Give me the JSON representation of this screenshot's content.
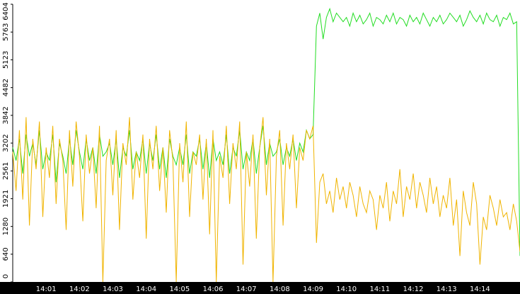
{
  "chart_data": {
    "type": "line",
    "categories": [
      null,
      null,
      null,
      null,
      null,
      null,
      null,
      null,
      null,
      null,
      "14:01",
      null,
      null,
      null,
      null,
      null,
      null,
      null,
      null,
      null,
      "14:02",
      null,
      null,
      null,
      null,
      null,
      null,
      null,
      null,
      null,
      "14:03",
      null,
      null,
      null,
      null,
      null,
      null,
      null,
      null,
      null,
      "14:04",
      null,
      null,
      null,
      null,
      null,
      null,
      null,
      null,
      null,
      "14:05",
      null,
      null,
      null,
      null,
      null,
      null,
      null,
      null,
      null,
      "14:06",
      null,
      null,
      null,
      null,
      null,
      null,
      null,
      null,
      null,
      "14:07",
      null,
      null,
      null,
      null,
      null,
      null,
      null,
      null,
      null,
      "14:08",
      null,
      null,
      null,
      null,
      null,
      null,
      null,
      null,
      null,
      "14:09",
      null,
      null,
      null,
      null,
      null,
      null,
      null,
      null,
      null,
      "14:10",
      null,
      null,
      null,
      null,
      null,
      null,
      null,
      null,
      null,
      "14:11",
      null,
      null,
      null,
      null,
      null,
      null,
      null,
      null,
      null,
      "14:12",
      null,
      null,
      null,
      null,
      null,
      null,
      null,
      null,
      null,
      "14:13",
      null,
      null,
      null,
      null,
      null,
      null,
      null,
      null,
      null,
      "14:14",
      null,
      null,
      null,
      null,
      null,
      null,
      null,
      null,
      null,
      null,
      null,
      null
    ],
    "series": [
      {
        "color": "#22dd22",
        "values": [
          3100,
          2800,
          3300,
          2500,
          3400,
          2900,
          3200,
          2700,
          3500,
          2600,
          3000,
          2800,
          3400,
          2300,
          3200,
          2900,
          2500,
          3300,
          2700,
          3500,
          3000,
          2600,
          3300,
          2800,
          3100,
          2500,
          3400,
          2900,
          3000,
          3200,
          2700,
          3300,
          2400,
          3100,
          2900,
          3500,
          2600,
          3000,
          2800,
          3300,
          2500,
          3200,
          2800,
          3400,
          2600,
          3100,
          2400,
          3300,
          2900,
          2700,
          3100,
          2700,
          3400,
          2500,
          3000,
          2900,
          3300,
          2600,
          3200,
          2400,
          3300,
          2800,
          3000,
          2700,
          3400,
          2500,
          3100,
          2900,
          3500,
          2600,
          3000,
          2800,
          3300,
          2500,
          3100,
          3600,
          2700,
          3200,
          2900,
          3000,
          3300,
          2700,
          3100,
          2900,
          3300,
          2800,
          3200,
          3000,
          3500,
          3300,
          3400,
          5900,
          6200,
          5600,
          6100,
          6300,
          6000,
          6200,
          6100,
          6000,
          6100,
          5900,
          6200,
          6000,
          6150,
          5950,
          6050,
          6200,
          5900,
          6100,
          6050,
          5950,
          6150,
          6000,
          6200,
          5950,
          6100,
          6050,
          5900,
          6150,
          6000,
          6100,
          5950,
          6200,
          6050,
          5900,
          6100,
          6000,
          6150,
          5950,
          6050,
          6200,
          6100,
          6000,
          6150,
          5900,
          6050,
          6250,
          6100,
          6000,
          6150,
          5950,
          6200,
          6050,
          6000,
          6150,
          5900,
          6100,
          6050,
          6200,
          5950,
          6000,
          600
        ]
      },
      {
        "color": "#f0b400",
        "values": [
          3000,
          2100,
          3500,
          1900,
          3800,
          1300,
          3300,
          2600,
          3700,
          1500,
          3100,
          2400,
          3600,
          1800,
          3300,
          2800,
          1200,
          3500,
          2200,
          3700,
          2900,
          1400,
          3400,
          2500,
          3100,
          1700,
          3600,
          0,
          2800,
          3300,
          2000,
          3500,
          1200,
          3200,
          2700,
          3800,
          1900,
          3000,
          2400,
          3400,
          1000,
          3300,
          2600,
          3600,
          2100,
          3100,
          1600,
          3500,
          2800,
          0,
          3200,
          2300,
          3700,
          1500,
          3000,
          2700,
          3400,
          1900,
          3300,
          1100,
          3500,
          0,
          2900,
          2400,
          3600,
          1800,
          3200,
          2600,
          3700,
          400,
          3000,
          2200,
          3400,
          1000,
          3100,
          3800,
          2000,
          3300,
          0,
          2900,
          3500,
          1300,
          3200,
          2600,
          3400,
          1700,
          3100,
          2800,
          3500,
          3300,
          3600,
          900,
          2300,
          2500,
          1800,
          2100,
          1600,
          2400,
          1900,
          2200,
          1700,
          2300,
          2000,
          1500,
          2200,
          1800,
          1600,
          2100,
          1900,
          1200,
          2000,
          1700,
          2300,
          1400,
          2100,
          1800,
          2600,
          1500,
          2200,
          1900,
          2500,
          1700,
          2300,
          2000,
          1600,
          2400,
          1800,
          2200,
          1500,
          2000,
          1700,
          2400,
          1300,
          1900,
          600,
          2100,
          1600,
          1300,
          2300,
          1800,
          400,
          1500,
          1200,
          2000,
          1700,
          1300,
          1900,
          1500,
          1600,
          1200,
          1800,
          1400,
          700
        ]
      }
    ],
    "ylim": [
      0,
      6404
    ],
    "yticks": [
      0,
      640,
      1280,
      1921,
      2561,
      3202,
      3842,
      4482,
      5123,
      5763,
      6404
    ]
  }
}
